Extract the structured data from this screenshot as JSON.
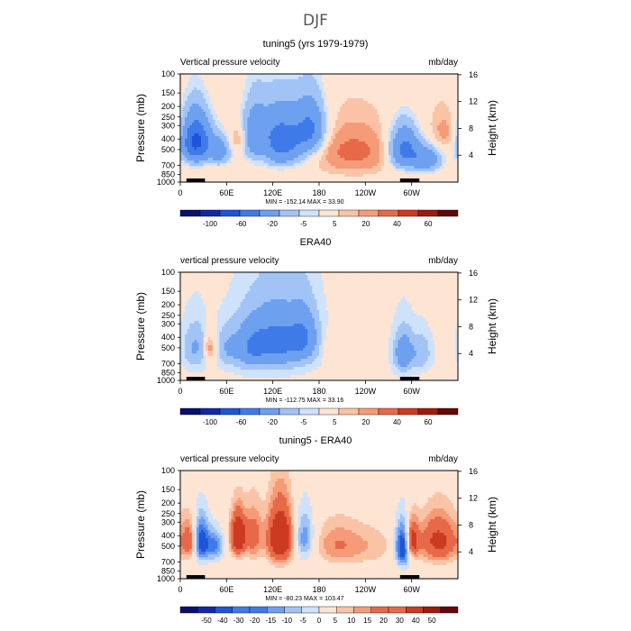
{
  "figure": {
    "season": "DJF"
  },
  "palettes": {
    "blue_red_13": [
      "#08106b",
      "#1129a6",
      "#1f55d6",
      "#3f7be8",
      "#6ea0f0",
      "#a2c3f5",
      "#cfe2fb",
      "#fde4d3",
      "#fbc3a6",
      "#f59b77",
      "#e8694a",
      "#cd3a22",
      "#9e1b0d",
      "#630707"
    ],
    "note": "diverging blue-white-red"
  },
  "chart_data": [
    {
      "type": "heatmap",
      "title": "tuning5 (yrs 1979-1979)",
      "left_label": "Vertical pressure velocity",
      "right_label": "mb/day",
      "ylabel": "Pressure (mb)",
      "ylabel_right": "Height (km)",
      "y_ticks": [
        "100",
        "150",
        "200",
        "250",
        "300",
        "400",
        "500",
        "700",
        "850",
        "1000"
      ],
      "y_values": [
        100,
        150,
        200,
        250,
        300,
        400,
        500,
        700,
        850,
        1000
      ],
      "y_right_ticks": [
        "16",
        "12",
        "8",
        "4"
      ],
      "y_right_values": [
        16,
        12,
        8,
        4
      ],
      "x_ticks": [
        "0",
        "60E",
        "120E",
        "180",
        "120W",
        "60W"
      ],
      "x_values": [
        0,
        60,
        120,
        180,
        240,
        300
      ],
      "xlim": [
        0,
        360
      ],
      "ylim": [
        1000,
        100
      ],
      "min_max_text": "MIN = -152.14   MAX =  33.90",
      "colorbar_labels": [
        "-100",
        "-60",
        "-20",
        "-5",
        "5",
        "20",
        "40",
        "60"
      ],
      "colorbar_levels": [
        -120,
        -100,
        -80,
        -60,
        -40,
        -20,
        -10,
        -5,
        0,
        5,
        10,
        20,
        30,
        40,
        60
      ],
      "anomalies": [
        {
          "lon": 20,
          "p": 420,
          "w": 14,
          "h": 480,
          "v": -70
        },
        {
          "lon": 52,
          "p": 520,
          "w": 10,
          "h": 380,
          "v": -30
        },
        {
          "lon": 75,
          "p": 400,
          "w": 8,
          "h": 200,
          "v": 15
        },
        {
          "lon": 95,
          "p": 350,
          "w": 12,
          "h": 500,
          "v": -25
        },
        {
          "lon": 110,
          "p": 480,
          "w": 8,
          "h": 400,
          "v": 10
        },
        {
          "lon": 130,
          "p": 420,
          "w": 22,
          "h": 560,
          "v": -55
        },
        {
          "lon": 170,
          "p": 320,
          "w": 14,
          "h": 420,
          "v": -40
        },
        {
          "lon": 225,
          "p": 520,
          "w": 30,
          "h": 500,
          "v": 22
        },
        {
          "lon": 290,
          "p": 500,
          "w": 14,
          "h": 500,
          "v": -50
        },
        {
          "lon": 320,
          "p": 620,
          "w": 14,
          "h": 380,
          "v": -35
        },
        {
          "lon": 345,
          "p": 350,
          "w": 14,
          "h": 300,
          "v": 12
        }
      ],
      "background_value": 3
    },
    {
      "type": "heatmap",
      "title": "ERA40",
      "left_label": "vertical pressure velocity",
      "right_label": "mb/day",
      "ylabel": "Pressure (mb)",
      "ylabel_right": "Height (km)",
      "y_ticks": [
        "100",
        "150",
        "200",
        "250",
        "300",
        "400",
        "500",
        "700",
        "850",
        "1000"
      ],
      "y_values": [
        100,
        150,
        200,
        250,
        300,
        400,
        500,
        700,
        850,
        1000
      ],
      "y_right_ticks": [
        "16",
        "12",
        "8",
        "4"
      ],
      "y_right_values": [
        16,
        12,
        8,
        4
      ],
      "x_ticks": [
        "0",
        "60E",
        "120E",
        "180",
        "120W",
        "60W"
      ],
      "x_values": [
        0,
        60,
        120,
        180,
        240,
        300
      ],
      "xlim": [
        0,
        360
      ],
      "ylim": [
        1000,
        100
      ],
      "min_max_text": "MIN = -112.75   MAX =  33.16",
      "colorbar_labels": [
        "-100",
        "-60",
        "-20",
        "-5",
        "5",
        "20",
        "40",
        "60"
      ],
      "colorbar_levels": [
        -120,
        -100,
        -80,
        -60,
        -40,
        -20,
        -10,
        -5,
        0,
        5,
        10,
        20,
        30,
        40,
        60
      ],
      "anomalies": [
        {
          "lon": 20,
          "p": 500,
          "w": 10,
          "h": 450,
          "v": -18
        },
        {
          "lon": 38,
          "p": 500,
          "w": 6,
          "h": 300,
          "v": 20
        },
        {
          "lon": 62,
          "p": 500,
          "w": 10,
          "h": 400,
          "v": -15
        },
        {
          "lon": 90,
          "p": 500,
          "w": 14,
          "h": 500,
          "v": -25
        },
        {
          "lon": 125,
          "p": 440,
          "w": 24,
          "h": 560,
          "v": -45
        },
        {
          "lon": 160,
          "p": 400,
          "w": 12,
          "h": 450,
          "v": -30
        },
        {
          "lon": 200,
          "p": 500,
          "w": 12,
          "h": 300,
          "v": 6
        },
        {
          "lon": 235,
          "p": 560,
          "w": 25,
          "h": 400,
          "v": 2
        },
        {
          "lon": 290,
          "p": 560,
          "w": 8,
          "h": 450,
          "v": -35
        },
        {
          "lon": 312,
          "p": 560,
          "w": 8,
          "h": 400,
          "v": -15
        }
      ],
      "background_value": -4
    },
    {
      "type": "heatmap",
      "title": "tuning5 - ERA40",
      "left_label": "vertical pressure velocity",
      "right_label": "mb/day",
      "ylabel": "Pressure (mb)",
      "ylabel_right": "Height (km)",
      "y_ticks": [
        "100",
        "150",
        "200",
        "250",
        "300",
        "400",
        "500",
        "700",
        "850",
        "1000"
      ],
      "y_values": [
        100,
        150,
        200,
        250,
        300,
        400,
        500,
        700,
        850,
        1000
      ],
      "y_right_ticks": [
        "16",
        "12",
        "8",
        "4"
      ],
      "y_right_values": [
        16,
        12,
        8,
        4
      ],
      "x_ticks": [
        "0",
        "60E",
        "120E",
        "180",
        "120W",
        "60W"
      ],
      "x_values": [
        0,
        60,
        120,
        180,
        240,
        300
      ],
      "xlim": [
        0,
        360
      ],
      "ylim": [
        1000,
        100
      ],
      "min_max_text": "MIN = -80.23   MAX = 103.47",
      "colorbar_labels": [
        "-50",
        "-40",
        "-30",
        "-20",
        "-15",
        "-10",
        "-5",
        "0",
        "5",
        "10",
        "15",
        "20",
        "30",
        "40",
        "50"
      ],
      "colorbar_levels": [
        -60,
        -50,
        -40,
        -30,
        -20,
        -15,
        -10,
        -5,
        0,
        5,
        10,
        15,
        20,
        30,
        40,
        50,
        60
      ],
      "anomalies": [
        {
          "lon": 15,
          "p": 450,
          "w": 8,
          "h": 420,
          "v": 30
        },
        {
          "lon": 25,
          "p": 450,
          "w": 8,
          "h": 450,
          "v": -40
        },
        {
          "lon": 45,
          "p": 500,
          "w": 8,
          "h": 350,
          "v": -20
        },
        {
          "lon": 75,
          "p": 400,
          "w": 7,
          "h": 400,
          "v": 45
        },
        {
          "lon": 95,
          "p": 400,
          "w": 8,
          "h": 500,
          "v": 20
        },
        {
          "lon": 130,
          "p": 420,
          "w": 12,
          "h": 560,
          "v": 45
        },
        {
          "lon": 160,
          "p": 420,
          "w": 10,
          "h": 480,
          "v": -20
        },
        {
          "lon": 200,
          "p": 480,
          "w": 20,
          "h": 500,
          "v": 12
        },
        {
          "lon": 240,
          "p": 500,
          "w": 30,
          "h": 500,
          "v": 10
        },
        {
          "lon": 290,
          "p": 500,
          "w": 8,
          "h": 500,
          "v": -40
        },
        {
          "lon": 300,
          "p": 450,
          "w": 6,
          "h": 400,
          "v": 40
        },
        {
          "lon": 335,
          "p": 450,
          "w": 18,
          "h": 500,
          "v": 30
        }
      ],
      "background_value": 4
    }
  ]
}
